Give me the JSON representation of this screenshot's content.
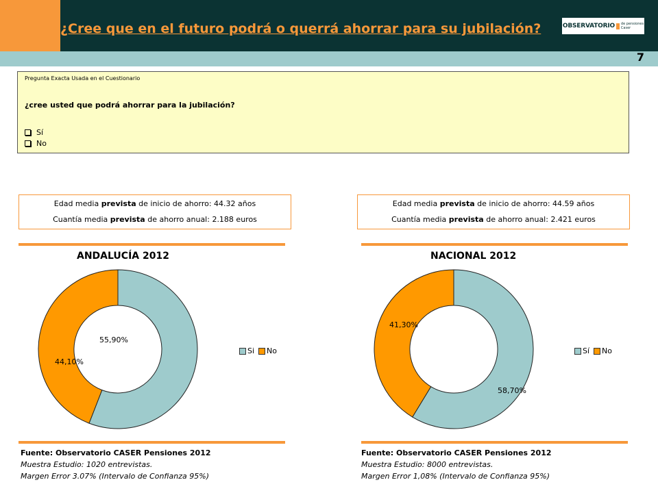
{
  "header": {
    "title": "¿Cree que en el futuro podrá o querrá ahorrar para su jubilación?",
    "logo_text": "OBSERVATORIO",
    "logo_sub_1": "de pensiones",
    "logo_sub_2": "Caser",
    "page_number": "7",
    "colors": {
      "orange": "#F7983A",
      "dark": "#0B3333",
      "teal": "#9ECBCC"
    }
  },
  "question": {
    "label": "Pregunta Exacta Usada en el Cuestionario",
    "text": "¿cree usted que podrá ahorrar para la jubilación?",
    "options": [
      "Sí",
      "No"
    ]
  },
  "panels": [
    {
      "stat_1_prefix": "Edad media ",
      "stat_1_bold": "prevista",
      "stat_1_suffix": " de inicio de ahorro: 44.32 años",
      "stat_2_prefix": "Cuantía media ",
      "stat_2_bold": "prevista",
      "stat_2_suffix": " de ahorro anual: 2.188 euros",
      "source": "Fuente: Observatorio CASER Pensiones 2012",
      "sample": "Muestra Estudio: 1020 entrevistas.",
      "error": "Margen Error 3.07% (Intervalo de Confianza 95%)"
    },
    {
      "stat_1_prefix": "Edad media ",
      "stat_1_bold": "prevista",
      "stat_1_suffix": " de inicio de ahorro: 44.59 años",
      "stat_2_prefix": "Cuantía media ",
      "stat_2_bold": "prevista",
      "stat_2_suffix": " de ahorro anual: 2.421 euros",
      "source": "Fuente: Observatorio CASER Pensiones 2012",
      "sample": "Muestra Estudio: 8000 entrevistas.",
      "error": "Margen Error 1,08% (Intervalo de Confianza 95%)"
    }
  ],
  "chart_data": [
    {
      "type": "pie",
      "title": "ANDALUCÍA 2012",
      "categories": [
        "Si",
        "No"
      ],
      "values": [
        55.9,
        44.1
      ],
      "data_labels": [
        "55,90%",
        "44,10%"
      ],
      "colors": [
        "#9ECBCC",
        "#FF9900"
      ],
      "legend_position": "right"
    },
    {
      "type": "pie",
      "title": "NACIONAL 2012",
      "categories": [
        "Sí",
        "No"
      ],
      "values": [
        58.7,
        41.3
      ],
      "data_labels": [
        "58,70%",
        "41,30%"
      ],
      "colors": [
        "#9ECBCC",
        "#FF9900"
      ],
      "legend_position": "right"
    }
  ]
}
